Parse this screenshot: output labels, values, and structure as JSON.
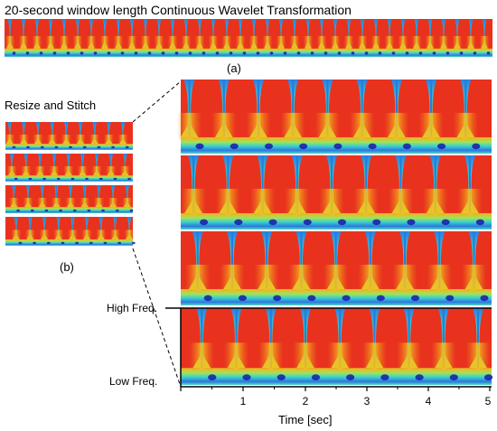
{
  "figure": {
    "title": "20-second window length Continuous Wavelet Transformation",
    "panel_a_label": "(a)",
    "stitch_title": "Resize and Stitch",
    "panel_b_label": "(b)",
    "freq_high_label": "High Freq.",
    "freq_low_label": "Low Freq.",
    "time_axis_label": "Time [sec]",
    "time_ticks": [
      "1",
      "2",
      "3",
      "4",
      "5"
    ],
    "colormap": [
      "#1a1aa8",
      "#1f7fe0",
      "#33d6d0",
      "#7fe37a",
      "#e6e62e",
      "#f7a21c",
      "#e01f1f"
    ],
    "background_color": "#e8321e"
  }
}
